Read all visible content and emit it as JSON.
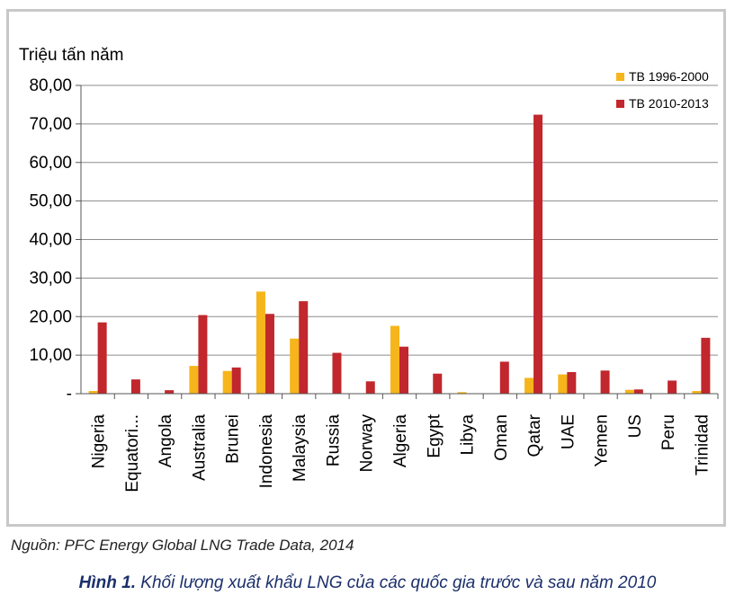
{
  "chart_data": {
    "type": "bar",
    "title": "",
    "ylabel": "Triệu tấn năm",
    "xlabel": "",
    "ylim": [
      0,
      80
    ],
    "yticks": [
      "-",
      "10,00",
      "20,00",
      "30,00",
      "40,00",
      "50,00",
      "60,00",
      "70,00",
      "80,00"
    ],
    "grid": true,
    "legend_position": "top-right",
    "categories": [
      "Nigeria",
      "Equatori...",
      "Angola",
      "Australia",
      "Brunei",
      "Indonesia",
      "Malaysia",
      "Russia",
      "Norway",
      "Algeria",
      "Egypt",
      "Libya",
      "Oman",
      "Qatar",
      "UAE",
      "Yemen",
      "US",
      "Peru",
      "Trinidad"
    ],
    "series": [
      {
        "name": "TB 1996-2000",
        "color": "#f6b51a",
        "values": [
          0.7,
          0,
          0,
          7.2,
          5.9,
          26.5,
          14.3,
          0,
          0,
          17.6,
          0,
          0.4,
          0,
          4.1,
          5.0,
          0,
          1.0,
          0,
          0.7
        ]
      },
      {
        "name": "TB 2010-2013",
        "color": "#c1272d",
        "values": [
          18.5,
          3.7,
          0.9,
          20.4,
          6.8,
          20.7,
          24.0,
          10.6,
          3.2,
          12.2,
          5.2,
          0.1,
          8.3,
          72.4,
          5.6,
          6.0,
          1.1,
          3.4,
          14.5
        ]
      }
    ]
  },
  "source": "Nguồn: PFC Energy Global LNG Trade Data, 2014",
  "caption": {
    "label": "Hình 1.",
    "text": " Khối lượng xuất khẩu LNG của các quốc gia trước và sau năm 2010"
  }
}
